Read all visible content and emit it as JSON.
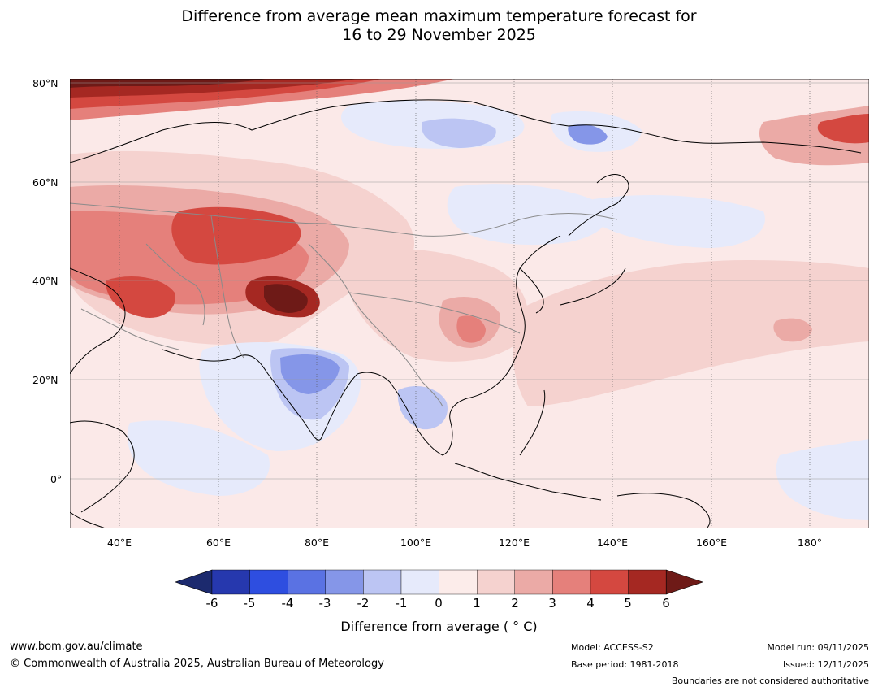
{
  "title": {
    "line1": "Difference from average mean maximum temperature forecast for",
    "line2": "16 to 29 November 2025"
  },
  "map": {
    "lat_labels": [
      "80°N",
      "60°N",
      "40°N",
      "20°N",
      "0°"
    ],
    "lon_labels": [
      "40°E",
      "60°E",
      "80°E",
      "100°E",
      "120°E",
      "140°E",
      "160°E",
      "180°"
    ],
    "background_color": "#fbe9e8",
    "palette": [
      "#1c2a6e",
      "#2638ae",
      "#2e4ee0",
      "#5a72e3",
      "#8596e8",
      "#bcc5f3",
      "#e6eafb",
      "#fcecea",
      "#f5d2cf",
      "#ebaaa6",
      "#e5807b",
      "#d44840",
      "#a52822",
      "#6e1a17"
    ]
  },
  "colorbar": {
    "ticks": [
      "-6",
      "-5",
      "-4",
      "-3",
      "-2",
      "-1",
      "0",
      "1",
      "2",
      "3",
      "4",
      "5",
      "6"
    ],
    "label": "Difference from average ( ° C)"
  },
  "footer": {
    "website": "www.bom.gov.au/climate",
    "copyright": "© Commonwealth of Australia 2025, Australian Bureau of Meteorology",
    "model": "Model: ACCESS-S2",
    "base_period": "Base period: 1981-2018",
    "model_run": "Model run: 09/11/2025",
    "issued": "Issued: 12/11/2025",
    "disclaimer": "Boundaries are not considered authoritative"
  }
}
